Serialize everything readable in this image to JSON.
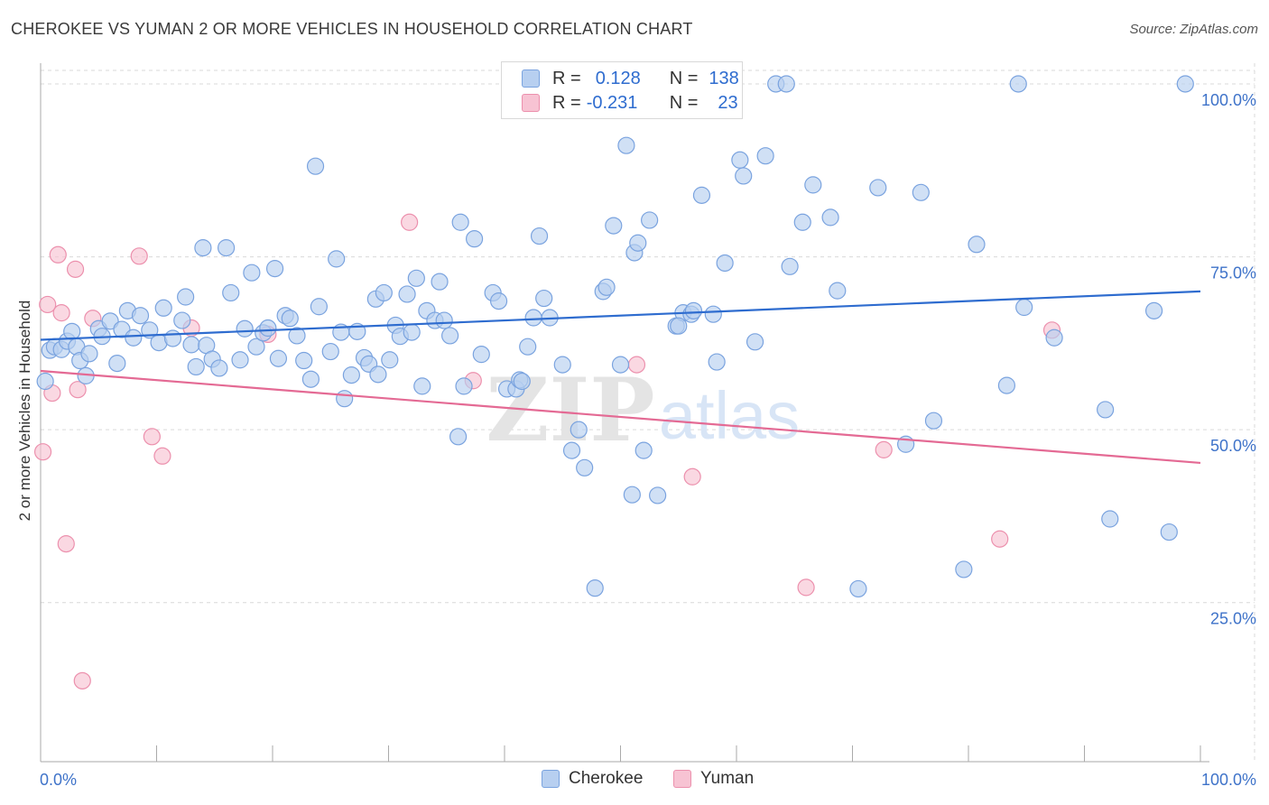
{
  "title": "CHEROKEE VS YUMAN 2 OR MORE VEHICLES IN HOUSEHOLD CORRELATION CHART",
  "source": "Source: ZipAtlas.com",
  "watermark": {
    "zip": "ZIP",
    "atlas": "atlas"
  },
  "legend": {
    "rows": [
      {
        "r_label": "R =",
        "r_value": "0.128",
        "n_label": "N =",
        "n_value": "138"
      },
      {
        "r_label": "R =",
        "r_value": "-0.231",
        "n_label": "N =",
        "n_value": "23"
      }
    ]
  },
  "bottom_legend": {
    "cherokee": "Cherokee",
    "yuman": "Yuman"
  },
  "colors": {
    "cherokee_fill": "#b7cff0",
    "cherokee_stroke": "#7aa3df",
    "cherokee_line": "#2e6ccf",
    "yuman_fill": "#f7c3d3",
    "yuman_stroke": "#ec90ad",
    "yuman_line": "#e46a94",
    "tick_label": "#3f73c9",
    "grid": "#d9d9d9"
  },
  "chart_data": {
    "type": "scatter",
    "title": "CHEROKEE VS YUMAN 2 OR MORE VEHICLES IN HOUSEHOLD CORRELATION CHART",
    "xlabel": "",
    "ylabel": "2 or more Vehicles in Household",
    "xlim": [
      0,
      100
    ],
    "ylim": [
      2,
      103
    ],
    "x_tick_labels": [
      "0.0%",
      "100.0%"
    ],
    "y_ticks": [
      25,
      50,
      75,
      100
    ],
    "y_tick_labels": [
      "25.0%",
      "50.0%",
      "75.0%",
      "100.0%"
    ],
    "grid": true,
    "legend": "top-center",
    "series": [
      {
        "name": "Cherokee",
        "trend": [
          [
            0,
            63.0
          ],
          [
            100,
            70.0
          ]
        ],
        "points": [
          [
            0.4,
            57
          ],
          [
            0.8,
            61.5
          ],
          [
            1.2,
            62
          ],
          [
            1.8,
            61.6
          ],
          [
            2.3,
            62.8
          ],
          [
            2.7,
            64.2
          ],
          [
            3.1,
            62
          ],
          [
            3.4,
            60
          ],
          [
            3.9,
            57.8
          ],
          [
            4.2,
            61
          ],
          [
            5.0,
            64.6
          ],
          [
            5.3,
            63.5
          ],
          [
            6.0,
            65.7
          ],
          [
            6.6,
            59.6
          ],
          [
            7.0,
            64.5
          ],
          [
            7.5,
            67.2
          ],
          [
            8.0,
            63.3
          ],
          [
            8.6,
            66.5
          ],
          [
            9.4,
            64.4
          ],
          [
            10.2,
            62.6
          ],
          [
            10.6,
            67.6
          ],
          [
            11.4,
            63.2
          ],
          [
            12.2,
            65.8
          ],
          [
            12.5,
            69.2
          ],
          [
            13.0,
            62.3
          ],
          [
            13.4,
            59.1
          ],
          [
            14.0,
            76.3
          ],
          [
            14.3,
            62.2
          ],
          [
            14.8,
            60.2
          ],
          [
            15.4,
            58.9
          ],
          [
            16.0,
            76.3
          ],
          [
            16.4,
            69.8
          ],
          [
            17.2,
            60.1
          ],
          [
            17.6,
            64.6
          ],
          [
            18.2,
            72.7
          ],
          [
            18.6,
            62
          ],
          [
            19.2,
            64
          ],
          [
            19.6,
            64.7
          ],
          [
            20.2,
            73.3
          ],
          [
            20.5,
            60.3
          ],
          [
            21.1,
            66.5
          ],
          [
            21.5,
            66.1
          ],
          [
            22.1,
            63.6
          ],
          [
            22.7,
            60
          ],
          [
            23.3,
            57.3
          ],
          [
            23.7,
            88.1
          ],
          [
            24.0,
            67.8
          ],
          [
            25.0,
            61.3
          ],
          [
            25.5,
            74.7
          ],
          [
            25.9,
            64.1
          ],
          [
            26.2,
            54.5
          ],
          [
            26.8,
            57.9
          ],
          [
            27.3,
            64.2
          ],
          [
            27.9,
            60.4
          ],
          [
            28.3,
            59.5
          ],
          [
            28.9,
            68.9
          ],
          [
            29.1,
            58
          ],
          [
            29.6,
            69.8
          ],
          [
            30.1,
            60.1
          ],
          [
            30.6,
            65.1
          ],
          [
            31.0,
            63.5
          ],
          [
            31.6,
            69.6
          ],
          [
            32.0,
            64.1
          ],
          [
            32.4,
            71.9
          ],
          [
            32.9,
            56.3
          ],
          [
            33.3,
            67.2
          ],
          [
            34.0,
            65.8
          ],
          [
            34.4,
            71.4
          ],
          [
            34.8,
            65.8
          ],
          [
            35.3,
            63.6
          ],
          [
            36.0,
            49
          ],
          [
            36.2,
            80
          ],
          [
            36.5,
            56.3
          ],
          [
            37.4,
            77.6
          ],
          [
            38.0,
            60.9
          ],
          [
            39.0,
            69.8
          ],
          [
            39.5,
            68.6
          ],
          [
            40.2,
            55.9
          ],
          [
            41.0,
            55.9
          ],
          [
            41.3,
            57.2
          ],
          [
            42.0,
            62
          ],
          [
            42.5,
            66.2
          ],
          [
            43.0,
            78
          ],
          [
            43.4,
            69
          ],
          [
            43.9,
            66.2
          ],
          [
            45.0,
            59.4
          ],
          [
            45.8,
            47
          ],
          [
            46.4,
            50
          ],
          [
            46.9,
            44.5
          ],
          [
            47.8,
            27.1
          ],
          [
            48.5,
            70
          ],
          [
            48.8,
            70.6
          ],
          [
            49.4,
            79.5
          ],
          [
            50.0,
            59.4
          ],
          [
            50.5,
            91.1
          ],
          [
            51.2,
            75.6
          ],
          [
            51.5,
            77
          ],
          [
            52.0,
            47
          ],
          [
            52.5,
            80.3
          ],
          [
            53.2,
            40.5
          ],
          [
            54.8,
            65
          ],
          [
            55.4,
            66.9
          ],
          [
            56.1,
            66.7
          ],
          [
            56.3,
            67.2
          ],
          [
            57.0,
            83.9
          ],
          [
            58.0,
            66.7
          ],
          [
            58.3,
            59.8
          ],
          [
            59.0,
            74.1
          ],
          [
            60.3,
            89
          ],
          [
            60.6,
            86.7
          ],
          [
            61.6,
            62.7
          ],
          [
            62.5,
            89.6
          ],
          [
            63.4,
            100
          ],
          [
            64.3,
            100
          ],
          [
            64.6,
            73.6
          ],
          [
            65.7,
            80
          ],
          [
            66.6,
            85.4
          ],
          [
            68.1,
            80.7
          ],
          [
            68.7,
            70.1
          ],
          [
            70.5,
            27
          ],
          [
            72.2,
            85
          ],
          [
            74.6,
            47.9
          ],
          [
            75.9,
            84.3
          ],
          [
            77.0,
            51.3
          ],
          [
            79.6,
            29.8
          ],
          [
            80.7,
            76.8
          ],
          [
            83.3,
            56.4
          ],
          [
            84.3,
            100
          ],
          [
            84.8,
            67.7
          ],
          [
            87.4,
            63.3
          ],
          [
            91.8,
            52.9
          ],
          [
            92.2,
            37.1
          ],
          [
            96.0,
            67.2
          ],
          [
            97.3,
            35.2
          ],
          [
            98.7,
            100
          ],
          [
            51.0,
            40.6
          ],
          [
            41.5,
            57
          ],
          [
            55.0,
            65
          ]
        ]
      },
      {
        "name": "Yuman",
        "trend": [
          [
            0,
            58.5
          ],
          [
            100,
            45.2
          ]
        ],
        "points": [
          [
            0.2,
            46.8
          ],
          [
            0.6,
            68.1
          ],
          [
            1.0,
            55.3
          ],
          [
            1.5,
            75.3
          ],
          [
            1.8,
            66.9
          ],
          [
            2.2,
            33.5
          ],
          [
            3.0,
            73.2
          ],
          [
            3.2,
            55.8
          ],
          [
            3.6,
            13.7
          ],
          [
            4.5,
            66.1
          ],
          [
            8.5,
            75.1
          ],
          [
            9.6,
            49
          ],
          [
            10.5,
            46.2
          ],
          [
            13.0,
            64.7
          ],
          [
            19.6,
            63.8
          ],
          [
            31.8,
            80
          ],
          [
            37.3,
            57.1
          ],
          [
            51.4,
            59.4
          ],
          [
            56.2,
            43.2
          ],
          [
            66.0,
            27.2
          ],
          [
            72.7,
            47.1
          ],
          [
            82.7,
            34.2
          ],
          [
            87.2,
            64.4
          ]
        ]
      }
    ]
  }
}
